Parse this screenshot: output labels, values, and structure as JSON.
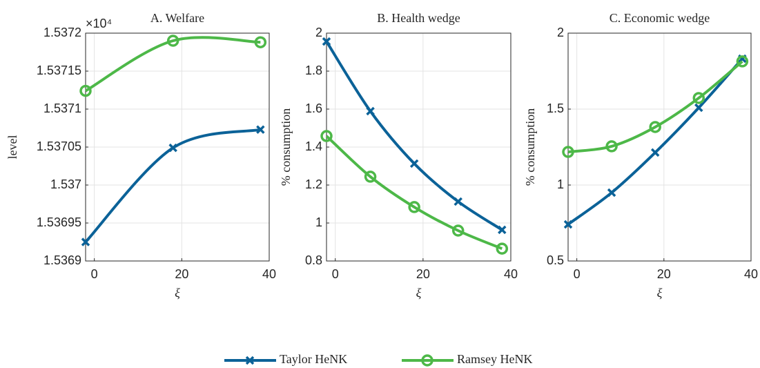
{
  "chart_data": [
    {
      "type": "line",
      "title": "A. Welfare",
      "xlabel": "ξ",
      "ylabel": "level",
      "axis_multiplier": "×10⁴",
      "x": [
        -2,
        18,
        38
      ],
      "xlim": [
        -2,
        40
      ],
      "xticks": [
        0,
        20,
        40
      ],
      "ylim": [
        1.5369,
        1.5372
      ],
      "yticks": [
        1.5369,
        1.53695,
        1.537,
        1.53705,
        1.5371,
        1.53715,
        1.5372
      ],
      "grid": true,
      "legend": "bottom",
      "series": [
        {
          "name": "Taylor HeNK",
          "color": "#0b6298",
          "marker": "x",
          "values": [
            1.536925,
            1.537049,
            1.537073
          ]
        },
        {
          "name": "Ramsey HeNK",
          "color": "#4db848",
          "marker": "o",
          "values": [
            1.537124,
            1.53719,
            1.537188
          ]
        }
      ]
    },
    {
      "type": "line",
      "title": "B. Health wedge",
      "xlabel": "ξ",
      "ylabel": "% consumption",
      "x": [
        -2,
        8,
        18,
        28,
        38
      ],
      "xlim": [
        -2,
        40
      ],
      "xticks": [
        0,
        20,
        40
      ],
      "ylim": [
        0.8,
        2
      ],
      "yticks": [
        0.8,
        1,
        1.2,
        1.4,
        1.6,
        1.8,
        2
      ],
      "grid": true,
      "series": [
        {
          "name": "Taylor HeNK",
          "color": "#0b6298",
          "marker": "x",
          "values": [
            1.956,
            1.589,
            1.313,
            1.113,
            0.964
          ]
        },
        {
          "name": "Ramsey HeNK",
          "color": "#4db848",
          "marker": "o",
          "values": [
            1.458,
            1.244,
            1.084,
            0.96,
            0.865
          ]
        }
      ]
    },
    {
      "type": "line",
      "title": "C. Economic wedge",
      "xlabel": "ξ",
      "ylabel": "% consumption",
      "x": [
        -2,
        8,
        18,
        28,
        38
      ],
      "xlim": [
        -2,
        40
      ],
      "xticks": [
        0,
        20,
        40
      ],
      "ylim": [
        0.5,
        2
      ],
      "yticks": [
        0.5,
        1,
        1.5,
        2
      ],
      "grid": true,
      "series": [
        {
          "name": "Taylor HeNK",
          "color": "#0b6298",
          "marker": "x",
          "values": [
            0.741,
            0.95,
            1.214,
            1.509,
            1.832
          ]
        },
        {
          "name": "Ramsey HeNK",
          "color": "#4db848",
          "marker": "o",
          "values": [
            1.218,
            1.255,
            1.382,
            1.573,
            1.814
          ]
        }
      ]
    }
  ]
}
